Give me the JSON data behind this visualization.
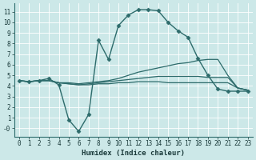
{
  "xlabel": "Humidex (Indice chaleur)",
  "bg_color": "#cce8e8",
  "grid_color": "#b8d8d8",
  "line_color": "#2d6b6b",
  "xlim": [
    -0.5,
    23.5
  ],
  "ylim": [
    -0.8,
    11.8
  ],
  "xticks": [
    0,
    1,
    2,
    3,
    4,
    5,
    6,
    7,
    8,
    9,
    10,
    11,
    12,
    13,
    14,
    15,
    16,
    17,
    18,
    19,
    20,
    21,
    22,
    23
  ],
  "yticks": [
    0,
    1,
    2,
    3,
    4,
    5,
    6,
    7,
    8,
    9,
    10,
    11
  ],
  "ytick_labels": [
    "-0",
    "1",
    "2",
    "3",
    "4",
    "5",
    "6",
    "7",
    "8",
    "9",
    "10",
    "11"
  ],
  "lines": [
    {
      "x": [
        0,
        1,
        2,
        3,
        4,
        5,
        6,
        7,
        8,
        9,
        10,
        11,
        12,
        13,
        14,
        15,
        16,
        17,
        18,
        19,
        20,
        21,
        22,
        23
      ],
      "y": [
        4.5,
        4.4,
        4.5,
        4.7,
        4.1,
        0.8,
        -0.3,
        1.3,
        8.3,
        6.5,
        9.7,
        10.7,
        11.2,
        11.2,
        11.1,
        10.0,
        9.2,
        8.6,
        6.6,
        5.0,
        3.7,
        3.5,
        3.5,
        3.5
      ],
      "marker": "D",
      "markersize": 2.5,
      "linewidth": 1.0
    },
    {
      "x": [
        0,
        1,
        2,
        3,
        4,
        5,
        6,
        7,
        8,
        9,
        10,
        11,
        12,
        13,
        14,
        15,
        16,
        17,
        18,
        19,
        20,
        21,
        22,
        23
      ],
      "y": [
        4.5,
        4.4,
        4.5,
        4.5,
        4.3,
        4.3,
        4.2,
        4.3,
        4.4,
        4.5,
        4.7,
        5.0,
        5.3,
        5.5,
        5.7,
        5.9,
        6.1,
        6.2,
        6.4,
        6.5,
        6.5,
        5.0,
        3.8,
        3.6
      ],
      "marker": null,
      "markersize": 0,
      "linewidth": 0.9
    },
    {
      "x": [
        0,
        1,
        2,
        3,
        4,
        5,
        6,
        7,
        8,
        9,
        10,
        11,
        12,
        13,
        14,
        15,
        16,
        17,
        18,
        19,
        20,
        21,
        22,
        23
      ],
      "y": [
        4.5,
        4.4,
        4.5,
        4.5,
        4.3,
        4.2,
        4.1,
        4.2,
        4.3,
        4.4,
        4.5,
        4.6,
        4.7,
        4.8,
        4.9,
        4.9,
        4.9,
        4.9,
        4.9,
        4.8,
        4.8,
        4.8,
        3.8,
        3.6
      ],
      "marker": null,
      "markersize": 0,
      "linewidth": 0.9
    },
    {
      "x": [
        0,
        1,
        2,
        3,
        4,
        5,
        6,
        7,
        8,
        9,
        10,
        11,
        12,
        13,
        14,
        15,
        16,
        17,
        18,
        19,
        20,
        21,
        22,
        23
      ],
      "y": [
        4.5,
        4.4,
        4.5,
        4.5,
        4.3,
        4.2,
        4.1,
        4.1,
        4.2,
        4.2,
        4.3,
        4.3,
        4.4,
        4.4,
        4.4,
        4.3,
        4.3,
        4.3,
        4.3,
        4.3,
        4.3,
        4.3,
        3.8,
        3.6
      ],
      "marker": null,
      "markersize": 0,
      "linewidth": 0.9
    }
  ],
  "tick_fontsize": 5.5,
  "xlabel_fontsize": 6.5,
  "tick_color": "#1a3a3a",
  "spine_color": "#2d6b6b"
}
